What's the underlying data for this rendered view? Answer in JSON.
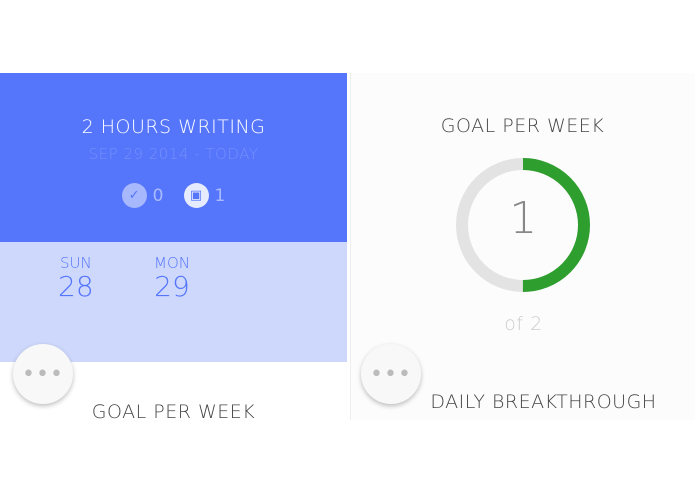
{
  "left_card": {
    "title": "2 HOURS WRITING",
    "date_range": "SEP 29 2014 - TODAY",
    "stats": [
      {
        "icon": "check-icon",
        "value": "0"
      },
      {
        "icon": "calendar-icon",
        "value": "1"
      }
    ],
    "days": [
      {
        "name": "SUN",
        "date": "28"
      },
      {
        "name": "MON",
        "date": "29"
      }
    ],
    "next_heading": "GOAL PER WEEK",
    "more_label": "•••"
  },
  "right_card": {
    "heading": "GOAL PER WEEK",
    "progress_value": "1",
    "progress_total_label": "of 2",
    "progress_fraction": 0.5,
    "next_heading": "DAILY BREAKTHROUGH",
    "more_label": "•••"
  },
  "colors": {
    "accent": "#5575fb",
    "accent_light": "#cdd8fc",
    "progress": "#2e9e2e",
    "track": "#e3e3e3"
  }
}
